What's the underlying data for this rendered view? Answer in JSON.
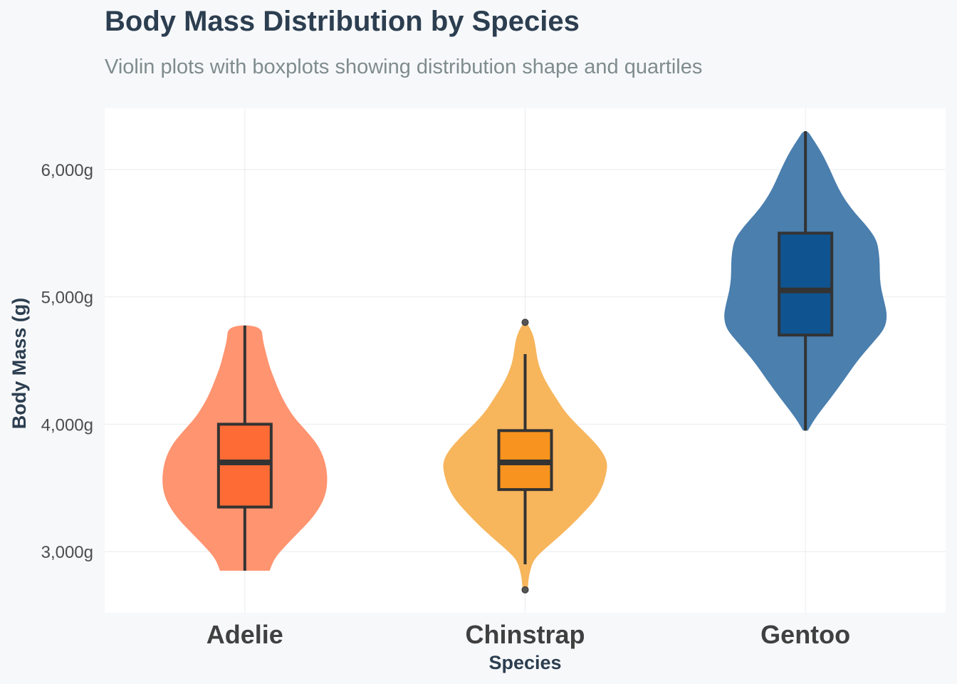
{
  "chart_data": {
    "type": "violin",
    "title": "Body Mass Distribution by Species",
    "subtitle": "Violin plots with boxplots showing distribution shape and quartiles",
    "xlabel": "Species",
    "ylabel": "Body Mass (g)",
    "ylim": [
      2520,
      6480
    ],
    "y_ticks": [
      3000,
      4000,
      5000,
      6000
    ],
    "y_tick_labels": [
      "3,000g",
      "4,000g",
      "5,000g",
      "6,000g"
    ],
    "grid": true,
    "legend": "none",
    "categories": [
      "Adelie",
      "Chinstrap",
      "Gentoo"
    ],
    "series": [
      {
        "name": "Adelie",
        "color": "#ff6b35",
        "violin_color": "#ff9470",
        "box": {
          "whisker_low": 2850,
          "q1": 3350,
          "median": 3700,
          "q3": 4000,
          "whisker_high": 4775
        },
        "outliers": [],
        "density_min": 2850,
        "density_max": 4775,
        "density": [
          [
            2850,
            0.3
          ],
          [
            2950,
            0.36
          ],
          [
            3050,
            0.5
          ],
          [
            3150,
            0.65
          ],
          [
            3250,
            0.8
          ],
          [
            3350,
            0.91
          ],
          [
            3450,
            0.98
          ],
          [
            3550,
            1.0
          ],
          [
            3650,
            0.99
          ],
          [
            3750,
            0.95
          ],
          [
            3850,
            0.87
          ],
          [
            3950,
            0.74
          ],
          [
            4050,
            0.6
          ],
          [
            4150,
            0.5
          ],
          [
            4250,
            0.42
          ],
          [
            4350,
            0.36
          ],
          [
            4450,
            0.3
          ],
          [
            4550,
            0.26
          ],
          [
            4650,
            0.22
          ],
          [
            4775,
            0.2
          ]
        ]
      },
      {
        "name": "Chinstrap",
        "color": "#f7931e",
        "violin_color": "#f7b55c",
        "box": {
          "whisker_low": 2900,
          "q1": 3487,
          "median": 3700,
          "q3": 3950,
          "whisker_high": 4550
        },
        "outliers": [
          2700,
          4800
        ],
        "density_min": 2700,
        "density_max": 4800,
        "density": [
          [
            2700,
            0.03
          ],
          [
            2780,
            0.04
          ],
          [
            2850,
            0.06
          ],
          [
            2930,
            0.1
          ],
          [
            3000,
            0.2
          ],
          [
            3100,
            0.38
          ],
          [
            3200,
            0.55
          ],
          [
            3300,
            0.7
          ],
          [
            3400,
            0.84
          ],
          [
            3500,
            0.93
          ],
          [
            3600,
            0.98
          ],
          [
            3700,
            1.0
          ],
          [
            3800,
            0.92
          ],
          [
            3900,
            0.78
          ],
          [
            4000,
            0.62
          ],
          [
            4100,
            0.48
          ],
          [
            4200,
            0.38
          ],
          [
            4300,
            0.28
          ],
          [
            4400,
            0.2
          ],
          [
            4500,
            0.15
          ],
          [
            4600,
            0.13
          ],
          [
            4700,
            0.1
          ],
          [
            4800,
            0.02
          ]
        ]
      },
      {
        "name": "Gentoo",
        "color": "#0f5490",
        "violin_color": "#4a7fae",
        "box": {
          "whisker_low": 3950,
          "q1": 4700,
          "median": 5050,
          "q3": 5500,
          "whisker_high": 6300
        },
        "outliers": [],
        "density_min": 3950,
        "density_max": 6300,
        "density": [
          [
            3950,
            0.03
          ],
          [
            4050,
            0.12
          ],
          [
            4200,
            0.3
          ],
          [
            4350,
            0.47
          ],
          [
            4500,
            0.63
          ],
          [
            4650,
            0.83
          ],
          [
            4750,
            0.96
          ],
          [
            4850,
            0.99
          ],
          [
            4950,
            0.96
          ],
          [
            5050,
            0.92
          ],
          [
            5150,
            0.9
          ],
          [
            5250,
            0.9
          ],
          [
            5350,
            0.89
          ],
          [
            5450,
            0.86
          ],
          [
            5550,
            0.75
          ],
          [
            5650,
            0.61
          ],
          [
            5750,
            0.49
          ],
          [
            5850,
            0.4
          ],
          [
            5950,
            0.33
          ],
          [
            6050,
            0.26
          ],
          [
            6150,
            0.18
          ],
          [
            6250,
            0.08
          ],
          [
            6300,
            0.03
          ]
        ]
      }
    ]
  }
}
